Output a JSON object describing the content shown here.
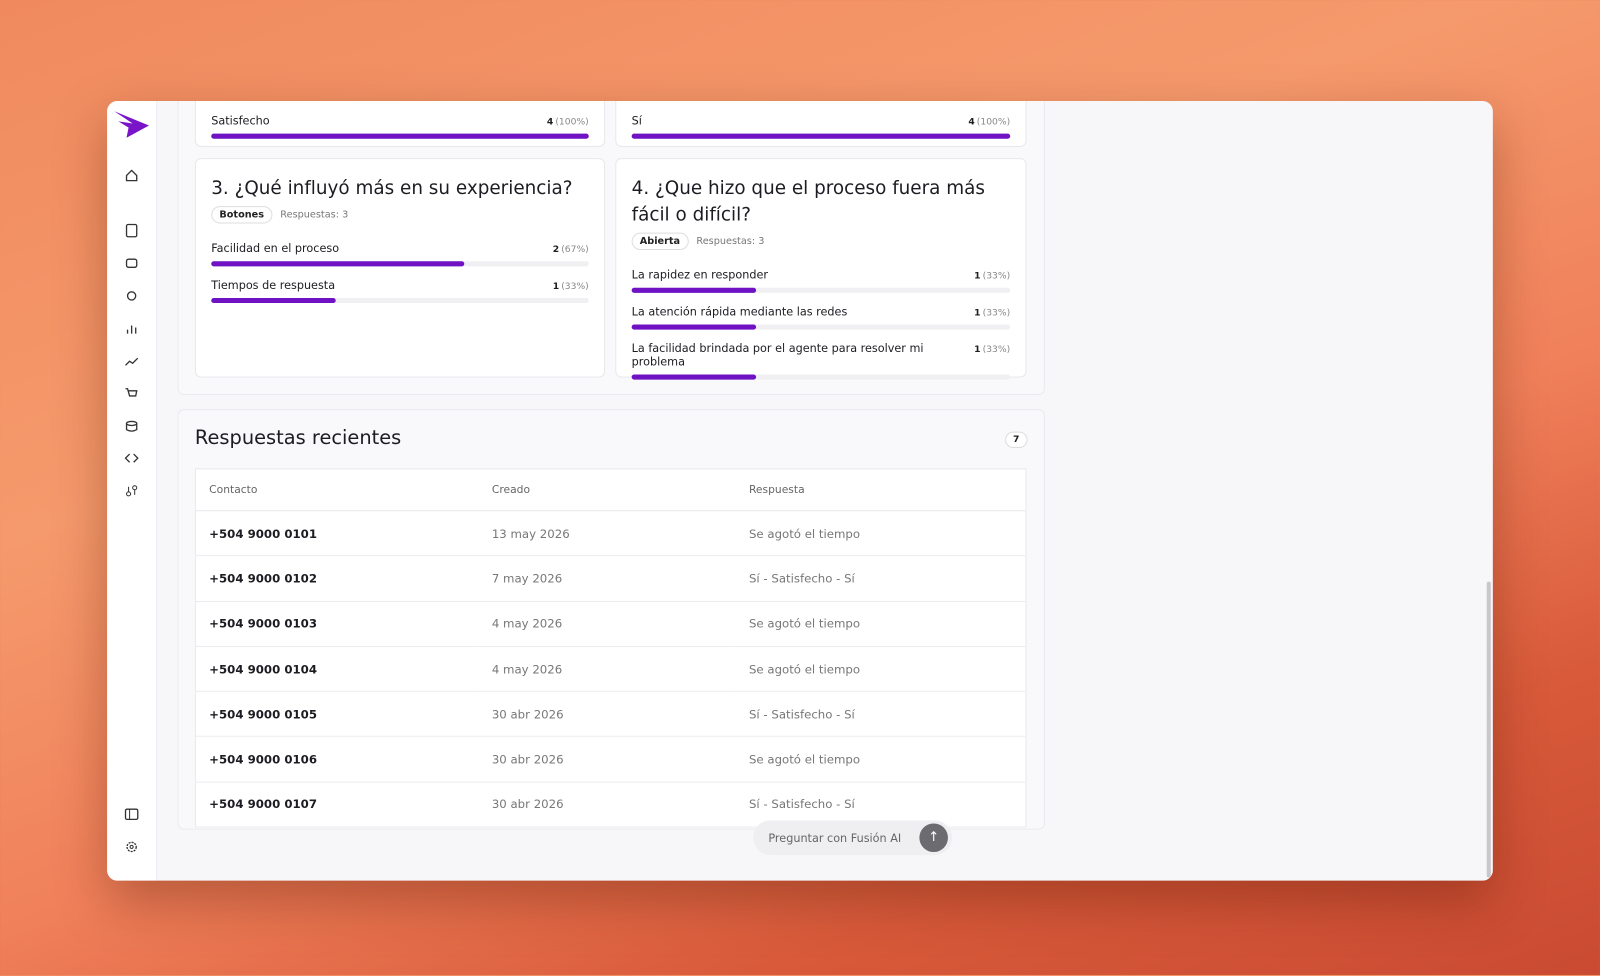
{
  "cards": [
    {
      "options": [
        {
          "option": "Satisfecho",
          "count": 4,
          "percent": 100,
          "percent_label": "(100%)"
        }
      ]
    },
    {
      "options": [
        {
          "option": "Sí",
          "count": 4,
          "percent": 100,
          "percent_label": "(100%)"
        }
      ]
    },
    {
      "title": "3. ¿Qué influyó más en su experiencia?",
      "tag": "Botones",
      "responses_label": "Respuestas:",
      "responses": 3,
      "options": [
        {
          "option": "Facilidad en el proceso",
          "count": 2,
          "percent": 67,
          "percent_label": "(67%)"
        },
        {
          "option": "Tiempos de respuesta",
          "count": 1,
          "percent": 33,
          "percent_label": "(33%)"
        }
      ]
    },
    {
      "title": "4. ¿Que hizo que el proceso fuera más fácil o difícil?",
      "tag": "Abierta",
      "responses_label": "Respuestas:",
      "responses": 3,
      "options": [
        {
          "option": "La rapidez en responder",
          "count": 1,
          "percent": 33,
          "percent_label": "(33%)"
        },
        {
          "option": "La atención rápida mediante las redes",
          "count": 1,
          "percent": 33,
          "percent_label": "(33%)"
        },
        {
          "option": "La facilidad brindada por el agente para resolver mi problema",
          "count": 1,
          "percent": 33,
          "percent_label": "(33%)"
        }
      ]
    }
  ],
  "recent": {
    "title": "Respuestas recientes",
    "count": 7,
    "columns": [
      "Contacto",
      "Creado",
      "Respuesta"
    ],
    "rows": [
      [
        "+504 9000 0101",
        "13 may 2026",
        "Se agotó el tiempo"
      ],
      [
        "+504 9000 0102",
        "7 may 2026",
        "Sí - Satisfecho - Sí"
      ],
      [
        "+504 9000 0103",
        "4 may 2026",
        "Se agotó el tiempo"
      ],
      [
        "+504 9000 0104",
        "4 may 2026",
        "Se agotó el tiempo"
      ],
      [
        "+504 9000 0105",
        "30 abr 2026",
        "Sí - Satisfecho - Sí"
      ],
      [
        "+504 9000 0106",
        "30 abr 2026",
        "Se agotó el tiempo"
      ],
      [
        "+504 9000 0107",
        "30 abr 2026",
        "Sí - Satisfecho - Sí"
      ]
    ]
  },
  "chat": {
    "placeholder": "Preguntar con Fusión AI"
  }
}
